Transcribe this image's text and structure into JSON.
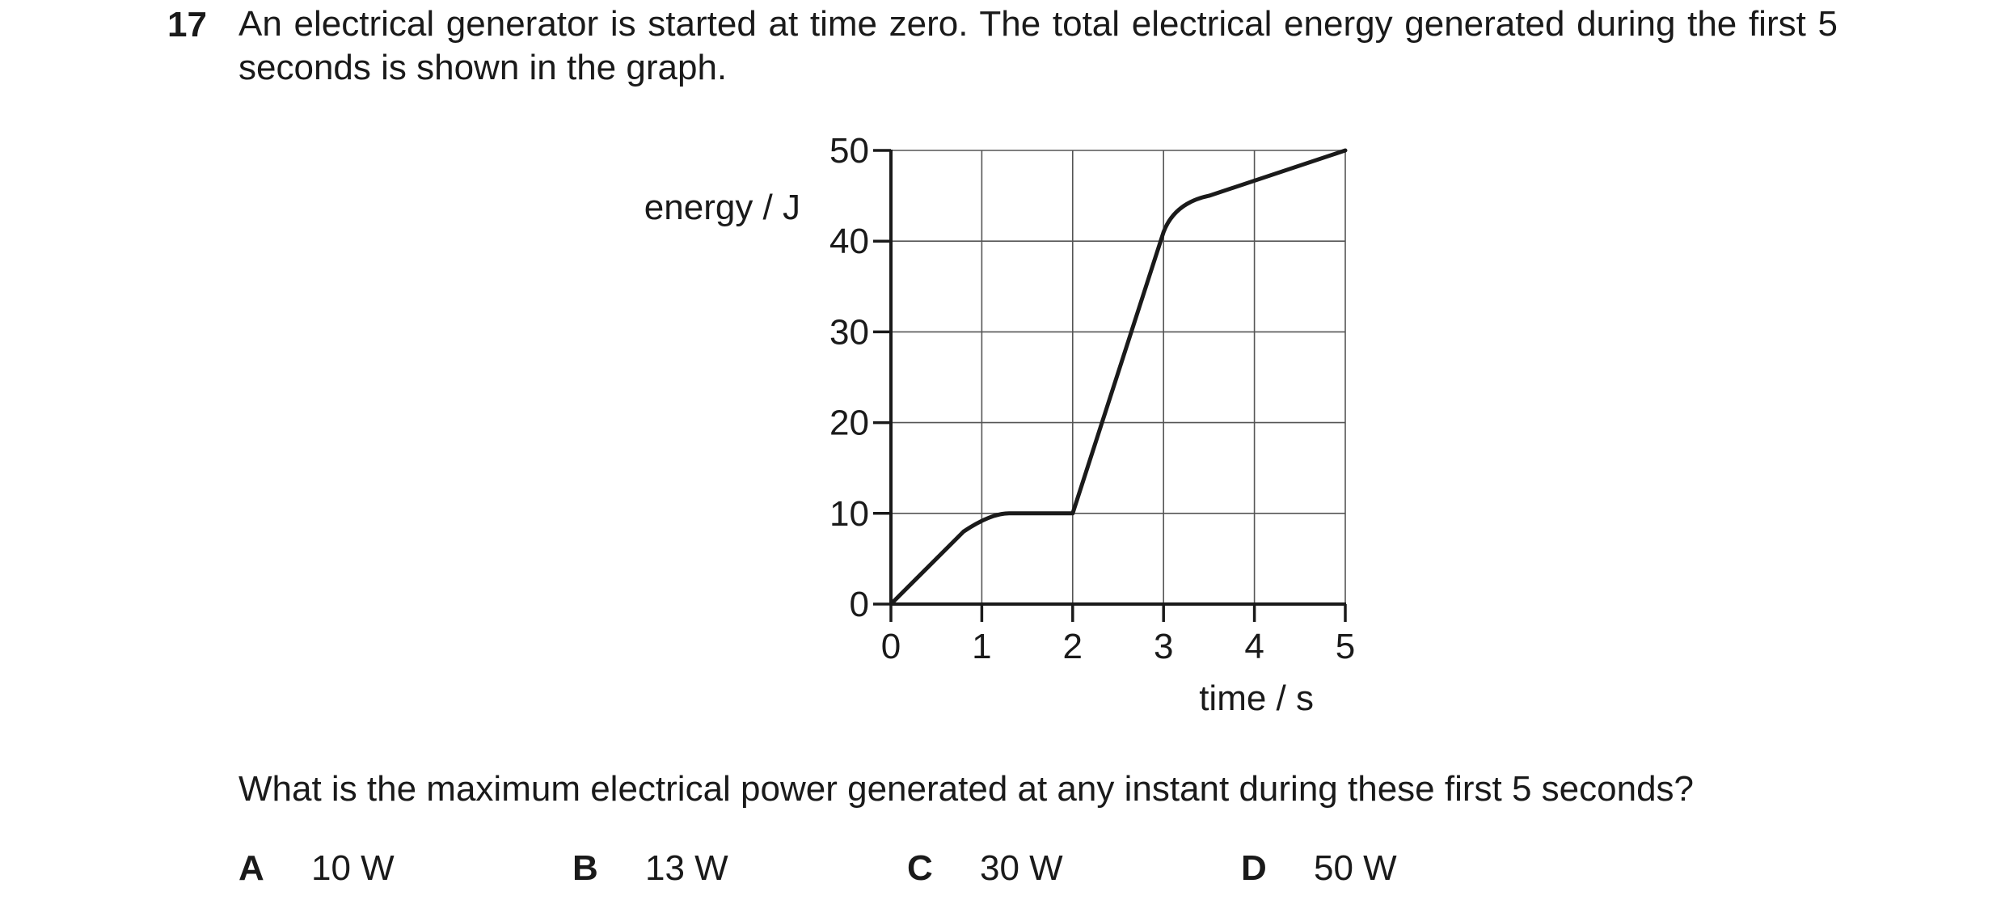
{
  "question": {
    "number": "17",
    "stem": "An electrical generator is started at time zero. The total electrical energy generated during the first 5 seconds is shown in the graph.",
    "prompt": "What is the maximum electrical power generated at any instant during these first 5 seconds?"
  },
  "options": [
    {
      "letter": "A",
      "value": "10 W"
    },
    {
      "letter": "B",
      "value": "13 W"
    },
    {
      "letter": "C",
      "value": "30 W"
    },
    {
      "letter": "D",
      "value": "50 W"
    }
  ],
  "chart_data": {
    "type": "line",
    "title": "",
    "xlabel": "time / s",
    "ylabel": "energy / J",
    "xlim": [
      0,
      5
    ],
    "ylim": [
      0,
      50
    ],
    "x_ticks": [
      0,
      1,
      2,
      3,
      4,
      5
    ],
    "y_ticks": [
      0,
      10,
      20,
      30,
      40,
      50
    ],
    "grid": true,
    "series": [
      {
        "x": [
          0,
          0.8,
          1.3,
          2.0,
          3.0,
          3.5,
          5.0
        ],
        "y": [
          0,
          8,
          10,
          10,
          41,
          45,
          50
        ]
      }
    ],
    "line_color": "#1a1a1a",
    "grid_color": "#555555"
  }
}
